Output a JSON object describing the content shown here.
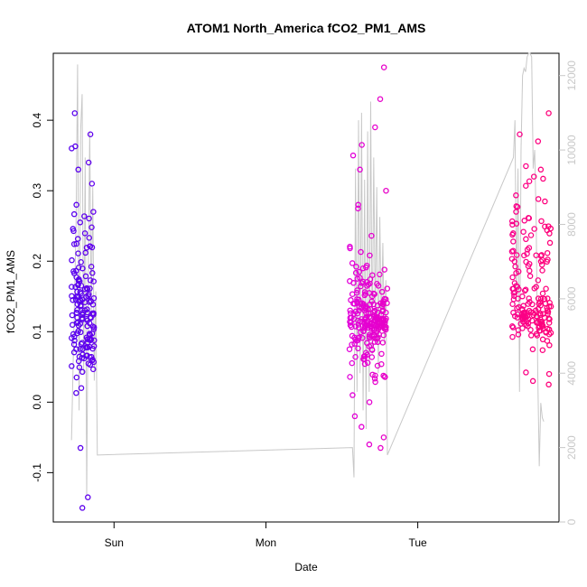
{
  "chart_data": {
    "type": "scatter",
    "title": "ATOM1 North_America fCO2_PM1_AMS",
    "xlabel": "Date",
    "ylabel": "fCO2_PM1_AMS",
    "x_ticks": [
      {
        "label": "Sun",
        "day": 1.0
      },
      {
        "label": "Mon",
        "day": 2.0
      },
      {
        "label": "Tue",
        "day": 3.0
      }
    ],
    "xlim_days": [
      0.6,
      3.93
    ],
    "ylim": [
      -0.17,
      0.495
    ],
    "y_ticks": [
      -0.1,
      0.0,
      0.1,
      0.2,
      0.3,
      0.4
    ],
    "y2lim": [
      0,
      12600
    ],
    "y2_ticks": [
      0,
      2000,
      4000,
      6000,
      8000,
      10000,
      12000
    ],
    "grid": false,
    "legend": "none",
    "colors": {
      "line": "#c8c8c8",
      "color_start": "#5500ee",
      "color_mid": "#e000e0",
      "color_end": "#ff0077"
    },
    "series": [
      {
        "segments": [
          {
            "x_range": [
              0.72,
              0.87
            ],
            "clusters": [
              [
                0.17,
                0.05
              ],
              [
                0.1,
                0.03
              ]
            ],
            "outliers": [
              0.41,
              0.38,
              0.363,
              0.36,
              0.34,
              0.33,
              0.31,
              0.28,
              0.27,
              0.255,
              0.035,
              0.02,
              0.013,
              -0.065,
              -0.135,
              -0.15
            ],
            "n": 150
          },
          {
            "x_range": [
              2.55,
              2.8
            ],
            "clusters": [
              [
                0.13,
                0.045
              ],
              [
                0.11,
                0.02
              ]
            ],
            "outliers": [
              0.475,
              0.43,
              0.39,
              0.365,
              0.35,
              0.33,
              0.3,
              0.28,
              0.01,
              0.0,
              -0.02,
              -0.035,
              -0.05,
              -0.06,
              -0.065
            ],
            "n": 220
          },
          {
            "x_range": [
              3.62,
              3.88
            ],
            "clusters": [
              [
                0.2,
                0.06
              ],
              [
                0.12,
                0.015
              ]
            ],
            "outliers": [
              0.41,
              0.38,
              0.37,
              0.33,
              0.32,
              0.04,
              0.03,
              0.025
            ],
            "n": 180
          }
        ]
      },
      {
        "axis": "right",
        "line_points": [
          [
            0.72,
            2200
          ],
          [
            0.74,
            6000
          ],
          [
            0.75,
            8000
          ],
          [
            0.76,
            12300
          ],
          [
            0.77,
            3000
          ],
          [
            0.78,
            10500
          ],
          [
            0.79,
            11500
          ],
          [
            0.8,
            4000
          ],
          [
            0.81,
            9800
          ],
          [
            0.82,
            700
          ],
          [
            0.83,
            6500
          ],
          [
            0.84,
            10500
          ],
          [
            0.85,
            5500
          ],
          [
            0.86,
            9000
          ],
          [
            0.87,
            3800
          ],
          [
            0.88,
            6200
          ],
          [
            0.89,
            1800
          ],
          [
            2.57,
            2000
          ],
          [
            2.58,
            1200
          ],
          [
            2.59,
            9500
          ],
          [
            2.6,
            3500
          ],
          [
            2.61,
            10800
          ],
          [
            2.62,
            4000
          ],
          [
            2.63,
            11000
          ],
          [
            2.64,
            3000
          ],
          [
            2.65,
            9200
          ],
          [
            2.66,
            2500
          ],
          [
            2.67,
            10500
          ],
          [
            2.68,
            3500
          ],
          [
            2.69,
            11300
          ],
          [
            2.7,
            4500
          ],
          [
            2.71,
            9800
          ],
          [
            2.72,
            5500
          ],
          [
            2.73,
            9000
          ],
          [
            2.74,
            4000
          ],
          [
            2.75,
            8200
          ],
          [
            2.76,
            5200
          ],
          [
            2.77,
            7500
          ],
          [
            2.78,
            4800
          ],
          [
            2.79,
            6500
          ],
          [
            2.8,
            1800
          ],
          [
            3.63,
            9800
          ],
          [
            3.64,
            10800
          ],
          [
            3.65,
            6000
          ],
          [
            3.66,
            9500
          ],
          [
            3.67,
            3500
          ],
          [
            3.68,
            10000
          ],
          [
            3.69,
            12000
          ],
          [
            3.7,
            12200
          ],
          [
            3.71,
            12100
          ],
          [
            3.72,
            12500
          ],
          [
            3.73,
            12600
          ],
          [
            3.74,
            12600
          ],
          [
            3.75,
            12500
          ],
          [
            3.76,
            9500
          ],
          [
            3.77,
            10000
          ],
          [
            3.78,
            8000
          ],
          [
            3.79,
            4000
          ],
          [
            3.8,
            1500
          ],
          [
            3.81,
            3200
          ],
          [
            3.82,
            2800
          ],
          [
            3.83,
            2700
          ]
        ]
      }
    ]
  }
}
